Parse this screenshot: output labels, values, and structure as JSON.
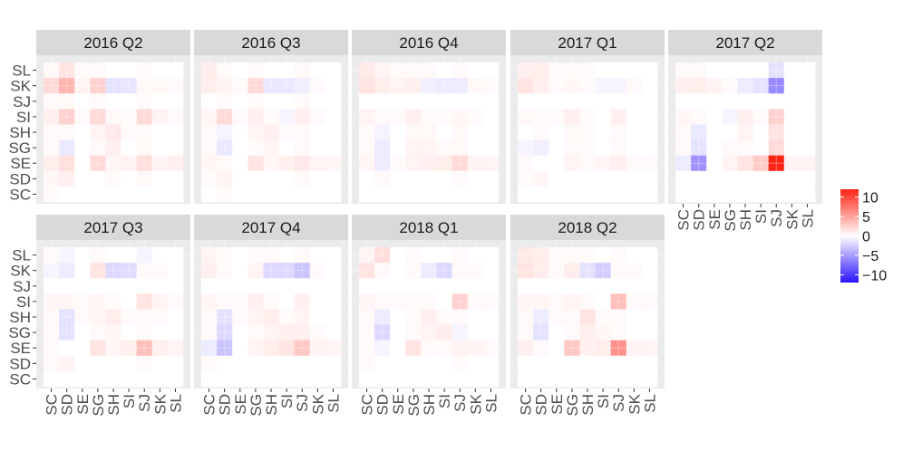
{
  "chart_data": {
    "type": "heatmap",
    "facet_wrap_ncol": 5,
    "x_categories": [
      "SC",
      "SD",
      "SE",
      "SG",
      "SH",
      "SI",
      "SJ",
      "SK",
      "SL"
    ],
    "y_categories": [
      "SC",
      "SD",
      "SE",
      "SG",
      "SH",
      "SI",
      "SJ",
      "SK",
      "SL"
    ],
    "y_order_top_to_bottom": [
      "SL",
      "SK",
      "SJ",
      "SI",
      "SH",
      "SG",
      "SE",
      "SD",
      "SC"
    ],
    "color_scale": {
      "low": "#2b14ff",
      "mid": "#ffffff",
      "high": "#ff2314",
      "limits": [
        -12,
        12
      ],
      "breaks": [
        10,
        5,
        0,
        -5,
        -10
      ],
      "break_labels": [
        "10",
        "5",
        "0",
        "−5",
        "−10"
      ]
    },
    "panel_background": "#ebebeb",
    "strip_background": "#d9d9d9",
    "grid_lines": true,
    "legend_position": "right",
    "panels": [
      {
        "label": "2016 Q2",
        "values": [
          [
            0.3,
            0,
            0,
            0,
            0,
            0,
            0,
            0,
            0
          ],
          [
            0.5,
            0.8,
            0,
            0,
            0.3,
            0,
            0.4,
            0,
            0
          ],
          [
            1,
            1.8,
            0,
            2,
            0.5,
            0.6,
            1.8,
            0.6,
            0.8
          ],
          [
            0.3,
            -1.2,
            0,
            0.3,
            0.8,
            0,
            0.4,
            0,
            0
          ],
          [
            0.3,
            0.3,
            0,
            0.6,
            1.2,
            0.3,
            0.3,
            0,
            0
          ],
          [
            0.8,
            2.5,
            0.3,
            2,
            0.4,
            0.3,
            2,
            0.6,
            0.3
          ],
          [
            0.3,
            0.4,
            0,
            0.3,
            0,
            0,
            0.3,
            0,
            0
          ],
          [
            2,
            4,
            0.6,
            2.5,
            -1.5,
            -1.3,
            0.4,
            0.4,
            0.3
          ],
          [
            0.4,
            1.5,
            0.3,
            0.3,
            0,
            0,
            0.3,
            0,
            0
          ]
        ]
      },
      {
        "label": "2016 Q3",
        "values": [
          [
            0,
            0.3,
            0,
            0,
            0,
            0,
            0,
            0,
            0
          ],
          [
            0.3,
            0.6,
            0,
            0,
            0,
            0,
            0.3,
            0,
            0
          ],
          [
            0.5,
            0.3,
            0,
            1.5,
            0.5,
            0.8,
            1.2,
            0.6,
            0.5
          ],
          [
            0.3,
            -1.2,
            0,
            0.3,
            0.6,
            0,
            0.3,
            0,
            0
          ],
          [
            0.3,
            -0.6,
            0,
            0.5,
            0.8,
            0.3,
            0.3,
            0,
            0
          ],
          [
            0.5,
            2,
            0.3,
            0.8,
            0.3,
            -0.5,
            0.8,
            0.3,
            0
          ],
          [
            0,
            0.3,
            0,
            0.3,
            0,
            0,
            0.3,
            0,
            0
          ],
          [
            1,
            0.6,
            0.3,
            2,
            -1.2,
            -1.2,
            -0.8,
            0.3,
            0
          ],
          [
            1,
            0.3,
            0,
            0.3,
            0,
            0,
            0.3,
            0,
            0
          ]
        ]
      },
      {
        "label": "2016 Q4",
        "values": [
          [
            0,
            0,
            0,
            0,
            0,
            0,
            0,
            0,
            0
          ],
          [
            0,
            0.3,
            0,
            0,
            0,
            0,
            0.3,
            0,
            0
          ],
          [
            0.5,
            -1,
            0.3,
            0.6,
            0.8,
            1,
            2,
            0.6,
            0.6
          ],
          [
            0.3,
            -1,
            0,
            0.6,
            0.6,
            0.3,
            0.4,
            0,
            0
          ],
          [
            0.3,
            -0.6,
            0,
            0.4,
            0.4,
            0,
            0.4,
            0,
            0
          ],
          [
            0.6,
            0.3,
            0.3,
            0.8,
            0.3,
            0.3,
            0.5,
            0.3,
            0
          ],
          [
            0,
            0,
            0,
            0,
            0,
            0,
            0,
            0,
            0
          ],
          [
            1.5,
            1,
            0.6,
            0.8,
            -0.8,
            -1,
            -1,
            0.4,
            0.3
          ],
          [
            1.2,
            0.6,
            0.3,
            0.3,
            0.3,
            0,
            0.3,
            0,
            0
          ]
        ]
      },
      {
        "label": "2017 Q1",
        "values": [
          [
            0,
            0,
            0,
            0,
            0,
            0,
            0,
            0,
            0
          ],
          [
            0.3,
            0.5,
            0,
            0,
            0,
            0,
            0,
            0,
            0
          ],
          [
            0.3,
            0,
            0,
            0.6,
            0.3,
            0.5,
            0.8,
            0.3,
            0.3
          ],
          [
            -0.5,
            -0.8,
            0,
            0.3,
            0.3,
            0,
            0.3,
            0,
            0
          ],
          [
            0,
            0.3,
            0,
            0.4,
            0.3,
            0,
            0.3,
            0,
            0
          ],
          [
            0.4,
            0.3,
            0.3,
            0.8,
            0.3,
            0,
            0.8,
            0,
            0
          ],
          [
            0,
            0,
            0,
            0,
            0,
            0,
            0,
            0,
            0
          ],
          [
            1.5,
            0.8,
            0.3,
            0.5,
            0.3,
            -0.5,
            -0.5,
            0.3,
            0
          ],
          [
            0.8,
            1,
            0.3,
            0.3,
            0.3,
            0,
            0,
            0,
            0
          ]
        ]
      },
      {
        "label": "2017 Q2",
        "values": [
          [
            0,
            0,
            0,
            0,
            0,
            0,
            0,
            0,
            0
          ],
          [
            0,
            0,
            0,
            0,
            0,
            0,
            0,
            0,
            0
          ],
          [
            -1,
            -5.5,
            0,
            0.6,
            1.5,
            2.8,
            12,
            0.6,
            0.6
          ],
          [
            0.3,
            -1.5,
            0,
            0.3,
            0.3,
            0,
            2,
            0,
            0
          ],
          [
            0.3,
            -1.2,
            0,
            0,
            0.6,
            0,
            1.5,
            0,
            0
          ],
          [
            0.5,
            0.3,
            0,
            -0.5,
            0.8,
            0.3,
            2.5,
            0,
            0
          ],
          [
            0,
            0,
            0,
            0,
            0,
            0,
            0,
            0,
            0
          ],
          [
            0.8,
            1,
            0.6,
            0.3,
            -1,
            -1.5,
            -6,
            0,
            0
          ],
          [
            0.3,
            0.3,
            0,
            0,
            0,
            0,
            -1.5,
            0,
            0
          ]
        ]
      },
      {
        "label": "2017 Q3",
        "values": [
          [
            0,
            0,
            0,
            0,
            0,
            0,
            0,
            0,
            0
          ],
          [
            0.3,
            0.6,
            0,
            0,
            0,
            0,
            0.3,
            0,
            0
          ],
          [
            0.3,
            0,
            0,
            1.5,
            0.5,
            0.8,
            3.5,
            0.8,
            0.6
          ],
          [
            0.3,
            -1.5,
            0,
            0.3,
            0.5,
            0,
            0.3,
            0,
            0
          ],
          [
            0.3,
            -1.5,
            0.3,
            0.5,
            1,
            0.3,
            0.3,
            0.3,
            0
          ],
          [
            0.5,
            0.5,
            0.3,
            0.5,
            0.3,
            0,
            1.5,
            0.6,
            0.3
          ],
          [
            0,
            0,
            0,
            0,
            0,
            0,
            0,
            0,
            0
          ],
          [
            -0.5,
            -1,
            0,
            1.5,
            -2,
            -1.8,
            0.3,
            0.3,
            0
          ],
          [
            0.3,
            -0.5,
            0,
            0.3,
            0,
            0,
            -0.5,
            0,
            0
          ]
        ]
      },
      {
        "label": "2017 Q4",
        "values": [
          [
            0,
            0,
            0,
            0,
            0,
            0,
            0,
            0,
            0
          ],
          [
            0.3,
            0,
            0,
            0,
            0,
            0,
            0,
            0,
            0
          ],
          [
            -1,
            -3,
            0,
            0.6,
            1,
            1.5,
            3,
            0.6,
            0.6
          ],
          [
            0.3,
            -2,
            0,
            0.3,
            0.6,
            0.8,
            0.8,
            0.3,
            0
          ],
          [
            0.3,
            -1.5,
            0.3,
            0.6,
            1,
            0.3,
            0.6,
            0,
            0
          ],
          [
            0.5,
            0.3,
            0.3,
            0.8,
            0.3,
            0,
            0.8,
            0,
            0
          ],
          [
            0,
            0,
            0,
            0,
            0,
            0,
            0,
            0,
            0
          ],
          [
            0.8,
            0.3,
            0,
            0.6,
            -2,
            -2,
            -3,
            0.3,
            0
          ],
          [
            0.6,
            0.3,
            0,
            0.3,
            0.3,
            0,
            0.3,
            0,
            0
          ]
        ]
      },
      {
        "label": "2018 Q1",
        "values": [
          [
            0,
            0,
            0,
            0,
            0,
            0,
            0,
            0,
            0
          ],
          [
            0.3,
            0,
            0,
            0,
            0,
            0,
            0.3,
            0,
            0
          ],
          [
            0.3,
            -0.5,
            0,
            1.5,
            0.3,
            0.3,
            0.6,
            0.6,
            0.3
          ],
          [
            0.3,
            -2,
            0,
            0.3,
            0.6,
            1,
            -0.5,
            0,
            0
          ],
          [
            0.3,
            -1,
            0,
            0.3,
            0.8,
            0.3,
            0.3,
            0,
            0
          ],
          [
            0.5,
            0.3,
            0.3,
            0.3,
            0.3,
            0,
            2.5,
            0.3,
            0.3
          ],
          [
            0,
            0,
            0,
            0,
            0,
            0,
            0,
            0,
            0
          ],
          [
            1.5,
            0.3,
            0,
            0.3,
            -1,
            -2,
            0.3,
            0.3,
            0
          ],
          [
            0.6,
            1.8,
            0,
            0.3,
            0,
            0,
            0.3,
            0,
            0
          ]
        ]
      },
      {
        "label": "2018 Q2",
        "values": [
          [
            0,
            0,
            0,
            0,
            0,
            0,
            0,
            0,
            0
          ],
          [
            0,
            0,
            0,
            0,
            0,
            0,
            0,
            0,
            0
          ],
          [
            0.8,
            0.3,
            0,
            3,
            0.8,
            1,
            6,
            0.6,
            0.6
          ],
          [
            0.3,
            -1.5,
            0,
            0.3,
            0.8,
            0.5,
            0.3,
            0,
            0
          ],
          [
            0.3,
            -1,
            0.3,
            0.3,
            1.5,
            0.3,
            0.3,
            0,
            0
          ],
          [
            0.5,
            0.5,
            0.3,
            0.6,
            0.3,
            0,
            3.5,
            0.3,
            0.3
          ],
          [
            0,
            0,
            0,
            0,
            0,
            0,
            0,
            0,
            0
          ],
          [
            1.5,
            1,
            0.3,
            1,
            -1.5,
            -2.5,
            0.3,
            0.3,
            0
          ],
          [
            1.2,
            1,
            0.3,
            0.3,
            0.3,
            0,
            0.3,
            0,
            0
          ]
        ]
      }
    ]
  }
}
